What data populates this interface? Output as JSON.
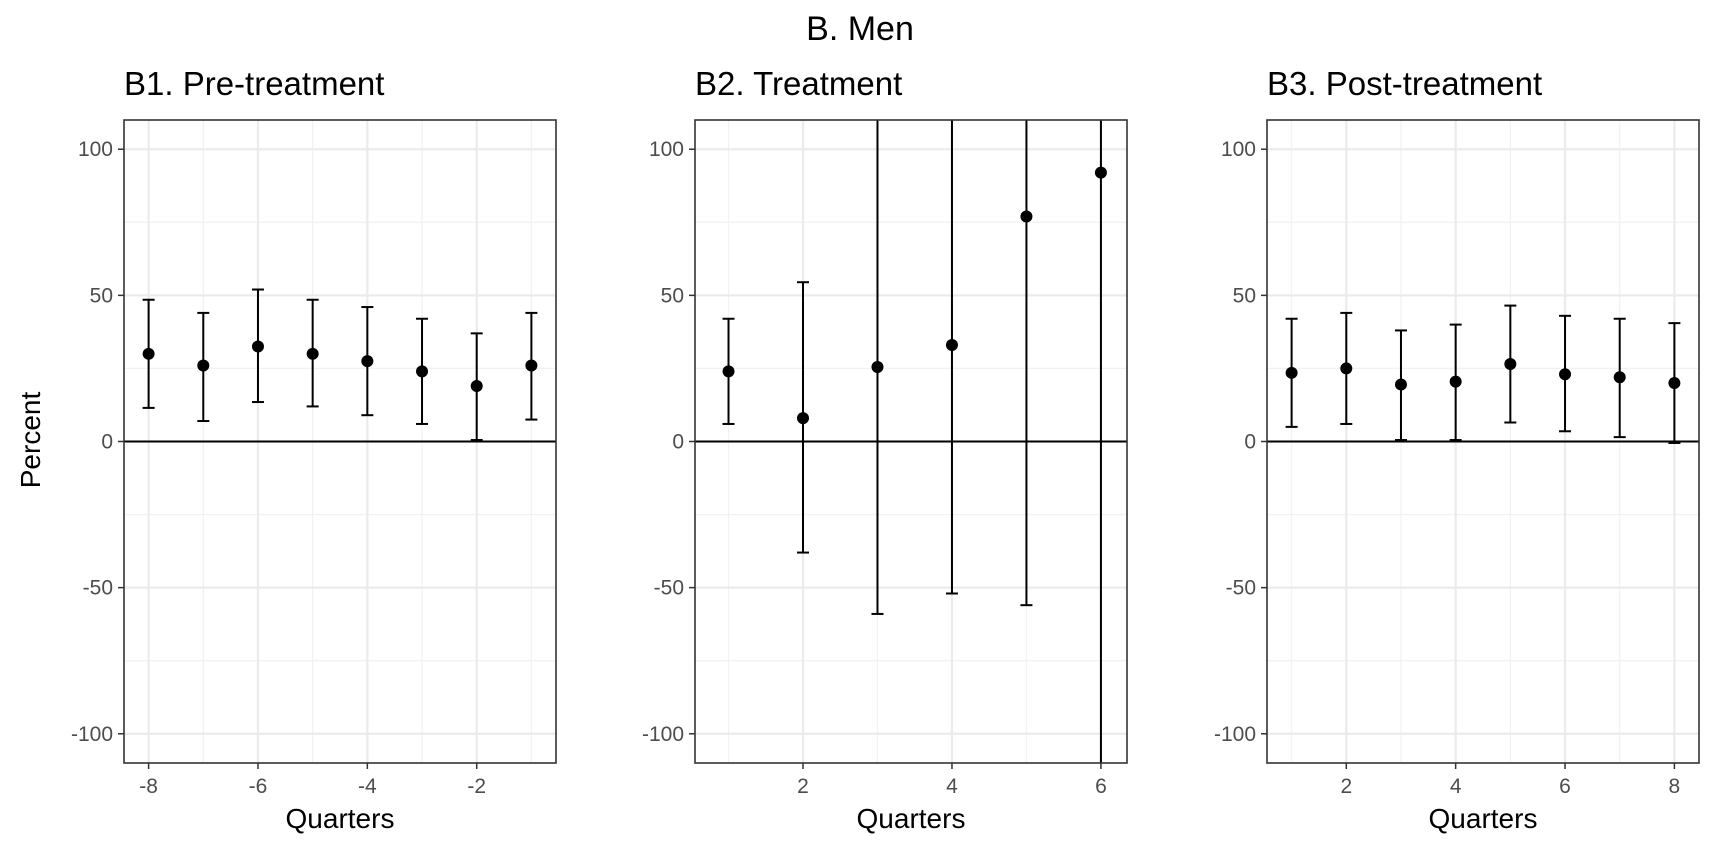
{
  "figure": {
    "title": "B. Men",
    "ylabel": "Percent"
  },
  "chart_data": [
    {
      "type": "scatter",
      "title": "B1. Pre-treatment",
      "xlabel": "Quarters",
      "ylabel": "Percent",
      "xlim": [
        -8.45,
        -0.55
      ],
      "ylim": [
        -110,
        110
      ],
      "xticks": [
        -8,
        -6,
        -4,
        -2
      ],
      "xtick_labels": [
        "-8",
        "-6",
        "-4",
        "-2"
      ],
      "yticks": [
        -100,
        -50,
        0,
        50,
        100
      ],
      "ytick_labels": [
        "-100",
        "-50",
        "0",
        "50",
        "100"
      ],
      "grid": true,
      "series": [
        {
          "x": [
            -8,
            -7,
            -6,
            -5,
            -4,
            -3,
            -2,
            -1
          ],
          "y": [
            30,
            26,
            32.5,
            30,
            27.5,
            24,
            19,
            26
          ],
          "ci_low": [
            11.5,
            7,
            13.5,
            12,
            9,
            6,
            0.5,
            7.5
          ],
          "ci_high": [
            48.5,
            44,
            52,
            48.5,
            46,
            42,
            37,
            44
          ]
        }
      ]
    },
    {
      "type": "scatter",
      "title": "B2. Treatment",
      "xlabel": "Quarters",
      "ylabel": "Percent",
      "xlim": [
        0.55,
        6.35
      ],
      "ylim": [
        -110,
        110
      ],
      "xticks": [
        2,
        4,
        6
      ],
      "xtick_labels": [
        "2",
        "4",
        "6"
      ],
      "yticks": [
        -100,
        -50,
        0,
        50,
        100
      ],
      "ytick_labels": [
        "-100",
        "-50",
        "0",
        "50",
        "100"
      ],
      "grid": true,
      "series": [
        {
          "x": [
            1,
            2,
            3,
            4,
            5,
            6
          ],
          "y": [
            24,
            8,
            25.5,
            33,
            77,
            92
          ],
          "ci_low": [
            6,
            -38,
            -59,
            -52,
            -56,
            -115
          ],
          "ci_high": [
            42,
            54.5,
            115,
            115,
            115,
            115
          ]
        }
      ]
    },
    {
      "type": "scatter",
      "title": "B3. Post-treatment",
      "xlabel": "Quarters",
      "ylabel": "Percent",
      "xlim": [
        0.55,
        8.45
      ],
      "ylim": [
        -110,
        110
      ],
      "xticks": [
        2,
        4,
        6,
        8
      ],
      "xtick_labels": [
        "2",
        "4",
        "6",
        "8"
      ],
      "yticks": [
        -100,
        -50,
        0,
        50,
        100
      ],
      "ytick_labels": [
        "-100",
        "-50",
        "0",
        "50",
        "100"
      ],
      "grid": true,
      "series": [
        {
          "x": [
            1,
            2,
            3,
            4,
            5,
            6,
            7,
            8
          ],
          "y": [
            23.5,
            25,
            19.5,
            20.5,
            26.5,
            23,
            22,
            20
          ],
          "ci_low": [
            5,
            6,
            0.5,
            0.5,
            6.5,
            3.5,
            1.5,
            -0.5
          ],
          "ci_high": [
            42,
            44,
            38,
            40,
            46.5,
            43,
            42,
            40.5
          ]
        }
      ]
    }
  ]
}
